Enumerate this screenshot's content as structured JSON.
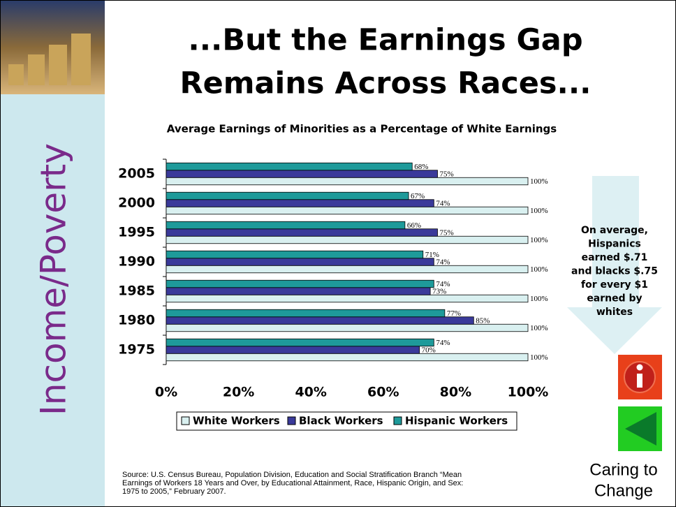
{
  "sidebar": {
    "label": "Income/Poverty"
  },
  "title_lines": [
    "...But the Earnings Gap",
    "Remains Across Races..."
  ],
  "chart_data": {
    "type": "hbar",
    "title": "Average Earnings of Minorities as a Percentage of White Earnings",
    "categories": [
      "2005",
      "2000",
      "1995",
      "1990",
      "1985",
      "1980",
      "1975"
    ],
    "series": [
      {
        "name": "White Workers",
        "color": "#d9f0f0",
        "values": [
          100,
          100,
          100,
          100,
          100,
          100,
          100
        ],
        "value_labels": [
          "100%",
          "100%",
          "100%",
          "100%",
          "100%",
          "100%",
          "100%"
        ]
      },
      {
        "name": "Black Workers",
        "color": "#3a3a9a",
        "values": [
          75,
          74,
          75,
          74,
          73,
          85,
          70
        ],
        "value_labels": [
          "75%",
          "74%",
          "75%",
          "74%",
          "73%",
          "85%",
          "70%"
        ]
      },
      {
        "name": "Hispanic Workers",
        "color": "#1e9a9a",
        "values": [
          68,
          67,
          66,
          71,
          74,
          77,
          74
        ],
        "value_labels": [
          "68%",
          "67%",
          "66%",
          "71%",
          "74%",
          "77%",
          "74%"
        ]
      }
    ],
    "xlim": [
      0,
      100
    ],
    "xticks": [
      {
        "value": 0,
        "label": "0%"
      },
      {
        "value": 20,
        "label": "20%"
      },
      {
        "value": 40,
        "label": "40%"
      },
      {
        "value": 60,
        "label": "60%"
      },
      {
        "value": 80,
        "label": "80%"
      },
      {
        "value": 100,
        "label": "100%"
      }
    ],
    "legend": "bottom"
  },
  "callout_lines": [
    "On average,",
    "Hispanics",
    "earned $.71",
    "and blacks $.75",
    "for every $1",
    "earned by",
    "whites"
  ],
  "source_lines": [
    "Source: U.S. Census Bureau, Population Division, Education and Social Stratification Branch “Mean",
    "Earnings of Workers 18 Years and Over, by Educational Attainment, Race, Hispanic Origin, and Sex:",
    "1975 to 2005,” February 2007."
  ],
  "footer_lines": [
    "Caring to",
    "Change"
  ]
}
